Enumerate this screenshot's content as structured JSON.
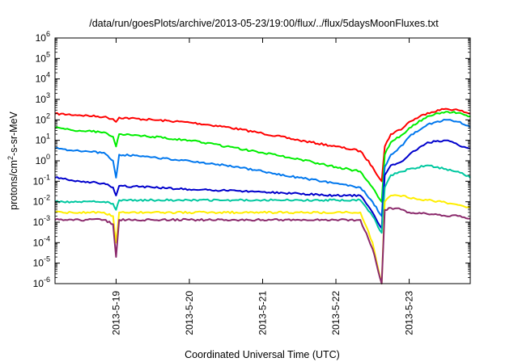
{
  "chart_data": {
    "type": "line",
    "title": "/data/run/goesPlots/archive/2013-05-23/19:00/flux/../flux/5daysMoonFluxes.txt",
    "xlabel": "Coordinated Universal Time (UTC)",
    "ylabel": {
      "prefix": "protons/cm",
      "sup": "2",
      "suffix": "-s-sr-MeV"
    },
    "yscale": "log",
    "ylim": [
      1e-06,
      1000000.0
    ],
    "ytick_labels": [
      {
        "base": "10",
        "exp": "-6"
      },
      {
        "base": "10",
        "exp": "-5"
      },
      {
        "base": "10",
        "exp": "-4"
      },
      {
        "base": "10",
        "exp": "-3"
      },
      {
        "base": "10",
        "exp": "-2"
      },
      {
        "base": "10",
        "exp": "-1"
      },
      {
        "base": "10",
        "exp": "0"
      },
      {
        "base": "10",
        "exp": "1"
      },
      {
        "base": "10",
        "exp": "2"
      },
      {
        "base": "10",
        "exp": "3"
      },
      {
        "base": "10",
        "exp": "4"
      },
      {
        "base": "10",
        "exp": "5"
      },
      {
        "base": "10",
        "exp": "6"
      }
    ],
    "xlim": [
      "2013-05-18 04:00",
      "2013-05-23 20:00"
    ],
    "xtick_labels": [
      "2013-5-19",
      "2013-5-20",
      "2013-5-21",
      "2013-5-22",
      "2013-5-23"
    ],
    "grid": false,
    "legend": "none",
    "series": [
      {
        "color": "#ff0000",
        "points": [
          [
            "2013-05-18 04:00",
            200
          ],
          [
            "2013-05-18 12:00",
            170
          ],
          [
            "2013-05-18 20:00",
            140
          ],
          [
            "2013-05-18 23:00",
            110
          ],
          [
            "2013-05-19 00:00",
            80
          ],
          [
            "2013-05-19 01:00",
            130
          ],
          [
            "2013-05-19 12:00",
            100
          ],
          [
            "2013-05-20 00:00",
            75
          ],
          [
            "2013-05-20 12:00",
            45
          ],
          [
            "2013-05-21 00:00",
            22
          ],
          [
            "2013-05-21 12:00",
            10
          ],
          [
            "2013-05-22 00:00",
            5
          ],
          [
            "2013-05-22 08:00",
            3
          ],
          [
            "2013-05-22 12:00",
            0.5
          ],
          [
            "2013-05-22 15:00",
            0.1
          ],
          [
            "2013-05-22 16:00",
            5
          ],
          [
            "2013-05-22 18:00",
            20
          ],
          [
            "2013-05-22 22:00",
            40
          ],
          [
            "2013-05-23 00:00",
            80
          ],
          [
            "2013-05-23 06:00",
            220
          ],
          [
            "2013-05-23 12:00",
            350
          ],
          [
            "2013-05-23 16:00",
            300
          ],
          [
            "2013-05-23 20:00",
            200
          ]
        ]
      },
      {
        "color": "#00ee00",
        "points": [
          [
            "2013-05-18 04:00",
            40
          ],
          [
            "2013-05-18 12:00",
            30
          ],
          [
            "2013-05-18 20:00",
            25
          ],
          [
            "2013-05-18 23:00",
            15
          ],
          [
            "2013-05-19 00:00",
            5
          ],
          [
            "2013-05-19 01:00",
            20
          ],
          [
            "2013-05-19 12:00",
            15
          ],
          [
            "2013-05-20 00:00",
            10
          ],
          [
            "2013-05-20 12:00",
            5
          ],
          [
            "2013-05-21 00:00",
            2.5
          ],
          [
            "2013-05-21 12:00",
            1.2
          ],
          [
            "2013-05-22 00:00",
            0.5
          ],
          [
            "2013-05-22 08:00",
            0.3
          ],
          [
            "2013-05-22 12:00",
            0.05
          ],
          [
            "2013-05-22 15:00",
            0.01
          ],
          [
            "2013-05-22 16:00",
            2
          ],
          [
            "2013-05-22 18:00",
            8
          ],
          [
            "2013-05-22 22:00",
            20
          ],
          [
            "2013-05-23 00:00",
            40
          ],
          [
            "2013-05-23 06:00",
            150
          ],
          [
            "2013-05-23 12:00",
            250
          ],
          [
            "2013-05-23 16:00",
            220
          ],
          [
            "2013-05-23 20:00",
            150
          ]
        ]
      },
      {
        "color": "#0077ee",
        "points": [
          [
            "2013-05-18 04:00",
            4
          ],
          [
            "2013-05-18 12:00",
            3
          ],
          [
            "2013-05-18 20:00",
            2.5
          ],
          [
            "2013-05-18 23:00",
            1
          ],
          [
            "2013-05-19 00:00",
            0.15
          ],
          [
            "2013-05-19 01:00",
            2
          ],
          [
            "2013-05-19 12:00",
            1.5
          ],
          [
            "2013-05-20 00:00",
            1
          ],
          [
            "2013-05-20 12:00",
            0.6
          ],
          [
            "2013-05-21 00:00",
            0.3
          ],
          [
            "2013-05-21 12:00",
            0.15
          ],
          [
            "2013-05-22 00:00",
            0.08
          ],
          [
            "2013-05-22 08:00",
            0.05
          ],
          [
            "2013-05-22 12:00",
            0.01
          ],
          [
            "2013-05-22 15:00",
            0.002
          ],
          [
            "2013-05-22 16:00",
            0.5
          ],
          [
            "2013-05-22 18:00",
            2
          ],
          [
            "2013-05-22 22:00",
            6
          ],
          [
            "2013-05-23 00:00",
            15
          ],
          [
            "2013-05-23 06:00",
            60
          ],
          [
            "2013-05-23 12:00",
            100
          ],
          [
            "2013-05-23 16:00",
            80
          ],
          [
            "2013-05-23 20:00",
            45
          ]
        ]
      },
      {
        "color": "#0000cc",
        "points": [
          [
            "2013-05-18 04:00",
            0.15
          ],
          [
            "2013-05-18 12:00",
            0.1
          ],
          [
            "2013-05-18 20:00",
            0.08
          ],
          [
            "2013-05-18 23:00",
            0.05
          ],
          [
            "2013-05-19 00:00",
            0.02
          ],
          [
            "2013-05-19 01:00",
            0.06
          ],
          [
            "2013-05-19 12:00",
            0.05
          ],
          [
            "2013-05-20 00:00",
            0.04
          ],
          [
            "2013-05-20 12:00",
            0.035
          ],
          [
            "2013-05-21 00:00",
            0.03
          ],
          [
            "2013-05-21 12:00",
            0.025
          ],
          [
            "2013-05-22 00:00",
            0.02
          ],
          [
            "2013-05-22 08:00",
            0.02
          ],
          [
            "2013-05-22 12:00",
            0.003
          ],
          [
            "2013-05-22 15:00",
            0.0005
          ],
          [
            "2013-05-22 16:00",
            0.2
          ],
          [
            "2013-05-22 18:00",
            0.6
          ],
          [
            "2013-05-22 22:00",
            1
          ],
          [
            "2013-05-23 00:00",
            2
          ],
          [
            "2013-05-23 06:00",
            8
          ],
          [
            "2013-05-23 12:00",
            10
          ],
          [
            "2013-05-23 16:00",
            6
          ],
          [
            "2013-05-23 20:00",
            4
          ]
        ]
      },
      {
        "color": "#00c8a0",
        "points": [
          [
            "2013-05-18 04:00",
            0.01
          ],
          [
            "2013-05-18 12:00",
            0.01
          ],
          [
            "2013-05-18 20:00",
            0.01
          ],
          [
            "2013-05-18 23:00",
            0.008
          ],
          [
            "2013-05-19 00:00",
            0.004
          ],
          [
            "2013-05-19 01:00",
            0.012
          ],
          [
            "2013-05-19 12:00",
            0.012
          ],
          [
            "2013-05-20 00:00",
            0.012
          ],
          [
            "2013-05-20 12:00",
            0.012
          ],
          [
            "2013-05-21 00:00",
            0.012
          ],
          [
            "2013-05-21 12:00",
            0.012
          ],
          [
            "2013-05-22 00:00",
            0.012
          ],
          [
            "2013-05-22 08:00",
            0.012
          ],
          [
            "2013-05-22 12:00",
            0.002
          ],
          [
            "2013-05-22 15:00",
            0.0003
          ],
          [
            "2013-05-22 16:00",
            0.05
          ],
          [
            "2013-05-22 18:00",
            0.2
          ],
          [
            "2013-05-22 22:00",
            0.3
          ],
          [
            "2013-05-23 00:00",
            0.4
          ],
          [
            "2013-05-23 06:00",
            0.6
          ],
          [
            "2013-05-23 12:00",
            0.4
          ],
          [
            "2013-05-23 16:00",
            0.3
          ],
          [
            "2013-05-23 20:00",
            0.15
          ]
        ]
      },
      {
        "color": "#ffee00",
        "points": [
          [
            "2013-05-18 04:00",
            0.003
          ],
          [
            "2013-05-18 12:00",
            0.003
          ],
          [
            "2013-05-18 20:00",
            0.003
          ],
          [
            "2013-05-18 23:00",
            0.002
          ],
          [
            "2013-05-19 00:00",
            0.0001
          ],
          [
            "2013-05-19 01:00",
            0.003
          ],
          [
            "2013-05-19 12:00",
            0.003
          ],
          [
            "2013-05-20 00:00",
            0.003
          ],
          [
            "2013-05-20 12:00",
            0.003
          ],
          [
            "2013-05-21 00:00",
            0.003
          ],
          [
            "2013-05-21 12:00",
            0.003
          ],
          [
            "2013-05-22 00:00",
            0.003
          ],
          [
            "2013-05-22 08:00",
            0.003
          ],
          [
            "2013-05-22 12:00",
            0.0001
          ],
          [
            "2013-05-22 15:00",
            1e-06
          ],
          [
            "2013-05-22 16:00",
            0.01
          ],
          [
            "2013-05-22 18:00",
            0.02
          ],
          [
            "2013-05-22 22:00",
            0.02
          ],
          [
            "2013-05-23 00:00",
            0.015
          ],
          [
            "2013-05-23 06:00",
            0.012
          ],
          [
            "2013-05-23 12:00",
            0.009
          ],
          [
            "2013-05-23 16:00",
            0.007
          ],
          [
            "2013-05-23 20:00",
            0.005
          ]
        ]
      },
      {
        "color": "#8b2a6c",
        "points": [
          [
            "2013-05-18 04:00",
            0.0013
          ],
          [
            "2013-05-18 12:00",
            0.0013
          ],
          [
            "2013-05-18 20:00",
            0.0013
          ],
          [
            "2013-05-18 23:00",
            0.0008
          ],
          [
            "2013-05-19 00:00",
            2e-05
          ],
          [
            "2013-05-19 01:00",
            0.0013
          ],
          [
            "2013-05-19 12:00",
            0.0013
          ],
          [
            "2013-05-20 00:00",
            0.0013
          ],
          [
            "2013-05-20 12:00",
            0.0013
          ],
          [
            "2013-05-21 00:00",
            0.0013
          ],
          [
            "2013-05-21 12:00",
            0.0013
          ],
          [
            "2013-05-22 00:00",
            0.0013
          ],
          [
            "2013-05-22 08:00",
            0.0013
          ],
          [
            "2013-05-22 12:00",
            5e-05
          ],
          [
            "2013-05-22 15:00",
            1e-06
          ],
          [
            "2013-05-22 16:00",
            0.004
          ],
          [
            "2013-05-22 18:00",
            0.005
          ],
          [
            "2013-05-22 22:00",
            0.004
          ],
          [
            "2013-05-23 00:00",
            0.003
          ],
          [
            "2013-05-23 06:00",
            0.0025
          ],
          [
            "2013-05-23 12:00",
            0.002
          ],
          [
            "2013-05-23 16:00",
            0.002
          ],
          [
            "2013-05-23 20:00",
            0.0015
          ]
        ]
      }
    ]
  }
}
